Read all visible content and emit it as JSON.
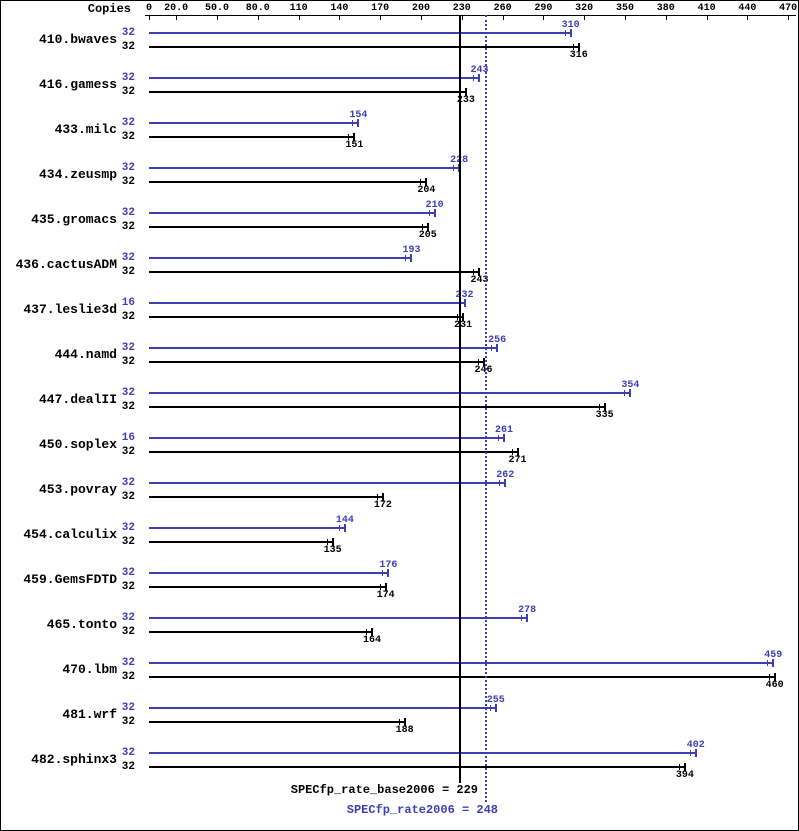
{
  "header": {
    "copies_label": "Copies"
  },
  "axis": {
    "tick_labels": [
      "0",
      "20.0",
      "50.0",
      "80.0",
      "110",
      "140",
      "170",
      "200",
      "230",
      "260",
      "290",
      "320",
      "350",
      "380",
      "410",
      "440",
      "470"
    ],
    "tick_values": [
      0,
      20,
      50,
      80,
      110,
      140,
      170,
      200,
      230,
      260,
      290,
      320,
      350,
      380,
      410,
      440,
      470
    ]
  },
  "colors": {
    "peak": "#3e3eb4",
    "base": "#000000"
  },
  "footer": {
    "base_label": "SPECfp_rate_base2006 = 229",
    "peak_label": "SPECfp_rate2006 = 248"
  },
  "chart_data": {
    "type": "bar",
    "orientation": "horizontal",
    "x_axis": {
      "min": 0,
      "max": 470,
      "ticks": [
        0,
        20,
        50,
        80,
        110,
        140,
        170,
        200,
        230,
        260,
        290,
        320,
        350,
        380,
        410,
        440,
        470
      ]
    },
    "legend": "two bars per benchmark: top = peak (blue) with copies count, bottom = base (black) with copies count",
    "reference_lines": [
      {
        "label": "SPECfp_rate_base2006",
        "value": 229,
        "style": "solid",
        "color": "#000000"
      },
      {
        "label": "SPECfp_rate2006",
        "value": 248,
        "style": "dotted",
        "color": "#3e3eb4"
      }
    ],
    "summary": {
      "base": 229,
      "peak": 248
    },
    "benchmarks": [
      {
        "name": "410.bwaves",
        "peak": {
          "copies": "32",
          "value": 310
        },
        "base": {
          "copies": "32",
          "value": 316
        }
      },
      {
        "name": "416.gamess",
        "peak": {
          "copies": "32",
          "value": 243
        },
        "base": {
          "copies": "32",
          "value": 233
        }
      },
      {
        "name": "433.milc",
        "peak": {
          "copies": "32",
          "value": 154
        },
        "base": {
          "copies": "32",
          "value": 151
        }
      },
      {
        "name": "434.zeusmp",
        "peak": {
          "copies": "32",
          "value": 228
        },
        "base": {
          "copies": "32",
          "value": 204
        }
      },
      {
        "name": "435.gromacs",
        "peak": {
          "copies": "32",
          "value": 210
        },
        "base": {
          "copies": "32",
          "value": 205
        }
      },
      {
        "name": "436.cactusADM",
        "peak": {
          "copies": "32",
          "value": 193
        },
        "base": {
          "copies": "32",
          "value": 243
        }
      },
      {
        "name": "437.leslie3d",
        "peak": {
          "copies": "16",
          "value": 232
        },
        "base": {
          "copies": "32",
          "value": 231
        }
      },
      {
        "name": "444.namd",
        "peak": {
          "copies": "32",
          "value": 256
        },
        "base": {
          "copies": "32",
          "value": 246
        }
      },
      {
        "name": "447.dealII",
        "peak": {
          "copies": "32",
          "value": 354
        },
        "base": {
          "copies": "32",
          "value": 335
        }
      },
      {
        "name": "450.soplex",
        "peak": {
          "copies": "16",
          "value": 261
        },
        "base": {
          "copies": "32",
          "value": 271
        }
      },
      {
        "name": "453.povray",
        "peak": {
          "copies": "32",
          "value": 262
        },
        "base": {
          "copies": "32",
          "value": 172
        }
      },
      {
        "name": "454.calculix",
        "peak": {
          "copies": "32",
          "value": 144
        },
        "base": {
          "copies": "32",
          "value": 135
        }
      },
      {
        "name": "459.GemsFDTD",
        "peak": {
          "copies": "32",
          "value": 176
        },
        "base": {
          "copies": "32",
          "value": 174
        }
      },
      {
        "name": "465.tonto",
        "peak": {
          "copies": "32",
          "value": 278
        },
        "base": {
          "copies": "32",
          "value": 164
        }
      },
      {
        "name": "470.lbm",
        "peak": {
          "copies": "32",
          "value": 459
        },
        "base": {
          "copies": "32",
          "value": 460
        }
      },
      {
        "name": "481.wrf",
        "peak": {
          "copies": "32",
          "value": 255
        },
        "base": {
          "copies": "32",
          "value": 188
        }
      },
      {
        "name": "482.sphinx3",
        "peak": {
          "copies": "32",
          "value": 402
        },
        "base": {
          "copies": "32",
          "value": 394
        }
      }
    ]
  }
}
